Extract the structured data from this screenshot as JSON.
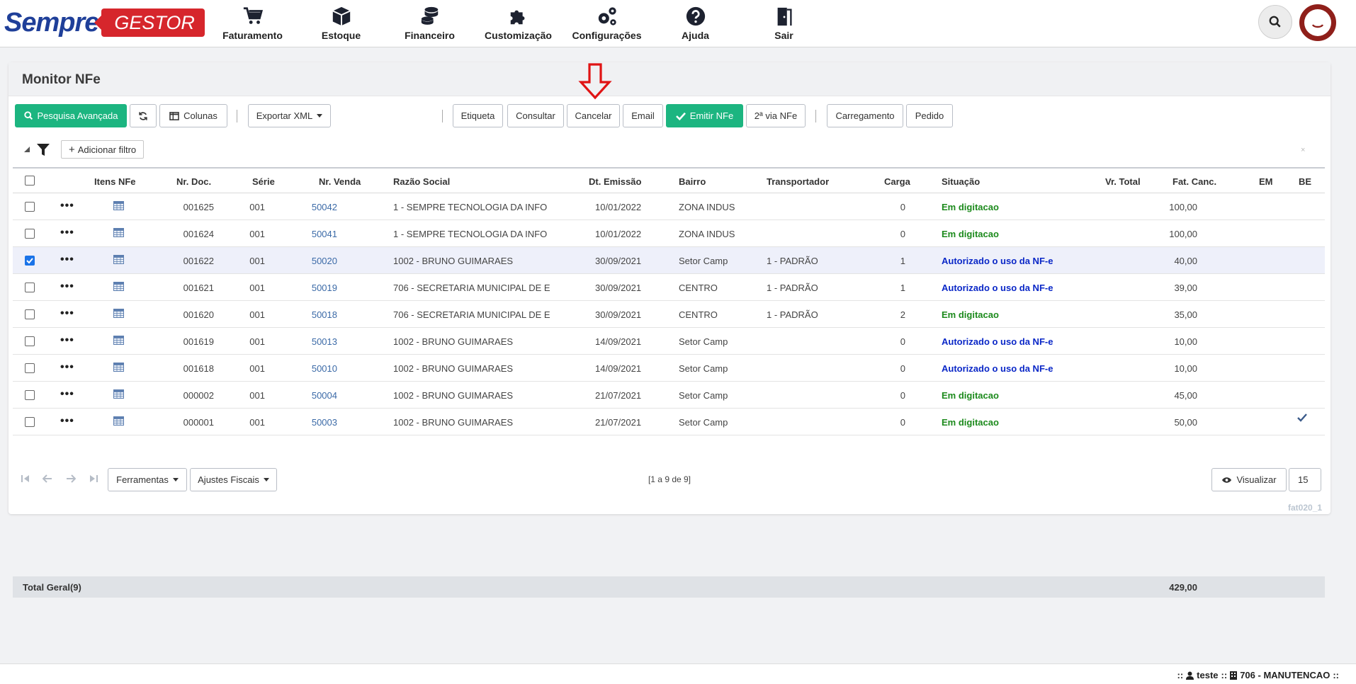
{
  "logo": {
    "part1": "Sempre",
    "part2": "GESTOR"
  },
  "nav": [
    {
      "label": "Faturamento",
      "icon": "cart-icon"
    },
    {
      "label": "Estoque",
      "icon": "box-icon"
    },
    {
      "label": "Financeiro",
      "icon": "coins-icon"
    },
    {
      "label": "Customização",
      "icon": "puzzle-icon"
    },
    {
      "label": "Configurações",
      "icon": "gears-icon"
    },
    {
      "label": "Ajuda",
      "icon": "help-icon"
    },
    {
      "label": "Sair",
      "icon": "door-exit-icon"
    }
  ],
  "page": {
    "title": "Monitor NFe"
  },
  "toolbar": {
    "advanced_search": "Pesquisa Avançada",
    "columns": "Colunas",
    "export_xml": "Exportar XML",
    "label": "Etiqueta",
    "consult": "Consultar",
    "cancel": "Cancelar",
    "email": "Email",
    "emit": "Emitir NFe",
    "second_copy": "2ª via NFe",
    "loading": "Carregamento",
    "order": "Pedido"
  },
  "filter": {
    "add": "Adicionar filtro",
    "close": "×"
  },
  "table": {
    "headers": [
      "Itens NFe",
      "Nr. Doc.",
      "Série",
      "Nr. Venda",
      "Razão Social",
      "Dt. Emissão",
      "Bairro",
      "Transportador",
      "Carga",
      "Situação",
      "Vr. Total",
      "Fat. Canc.",
      "EM",
      "BE"
    ],
    "rows": [
      {
        "doc": "001625",
        "serie": "001",
        "venda": "50042",
        "razao": "1 - SEMPRE TECNOLOGIA DA INFO",
        "data": "10/01/2022",
        "bairro": "ZONA INDUS",
        "transp": "",
        "carga": "0",
        "situacao": "Em digitacao",
        "status": "green",
        "total": "100,00",
        "checked": false,
        "be": false
      },
      {
        "doc": "001624",
        "serie": "001",
        "venda": "50041",
        "razao": "1 - SEMPRE TECNOLOGIA DA INFO",
        "data": "10/01/2022",
        "bairro": "ZONA INDUS",
        "transp": "",
        "carga": "0",
        "situacao": "Em digitacao",
        "status": "green",
        "total": "100,00",
        "checked": false,
        "be": false
      },
      {
        "doc": "001622",
        "serie": "001",
        "venda": "50020",
        "razao": "1002 - BRUNO GUIMARAES",
        "data": "30/09/2021",
        "bairro": "Setor Camp",
        "transp": "1 - PADRÃO",
        "carga": "1",
        "situacao": "Autorizado o uso da NF-e",
        "status": "blue",
        "total": "40,00",
        "checked": true,
        "be": false
      },
      {
        "doc": "001621",
        "serie": "001",
        "venda": "50019",
        "razao": "706 - SECRETARIA MUNICIPAL DE E",
        "data": "30/09/2021",
        "bairro": "CENTRO",
        "transp": "1 - PADRÃO",
        "carga": "1",
        "situacao": "Autorizado o uso da NF-e",
        "status": "blue",
        "total": "39,00",
        "checked": false,
        "be": false
      },
      {
        "doc": "001620",
        "serie": "001",
        "venda": "50018",
        "razao": "706 - SECRETARIA MUNICIPAL DE E",
        "data": "30/09/2021",
        "bairro": "CENTRO",
        "transp": "1 - PADRÃO",
        "carga": "2",
        "situacao": "Em digitacao",
        "status": "green",
        "total": "35,00",
        "checked": false,
        "be": false
      },
      {
        "doc": "001619",
        "serie": "001",
        "venda": "50013",
        "razao": "1002 - BRUNO GUIMARAES",
        "data": "14/09/2021",
        "bairro": "Setor Camp",
        "transp": "",
        "carga": "0",
        "situacao": "Autorizado o uso da NF-e",
        "status": "blue",
        "total": "10,00",
        "checked": false,
        "be": false
      },
      {
        "doc": "001618",
        "serie": "001",
        "venda": "50010",
        "razao": "1002 - BRUNO GUIMARAES",
        "data": "14/09/2021",
        "bairro": "Setor Camp",
        "transp": "",
        "carga": "0",
        "situacao": "Autorizado o uso da NF-e",
        "status": "blue",
        "total": "10,00",
        "checked": false,
        "be": false
      },
      {
        "doc": "000002",
        "serie": "001",
        "venda": "50004",
        "razao": "1002 - BRUNO GUIMARAES",
        "data": "21/07/2021",
        "bairro": "Setor Camp",
        "transp": "",
        "carga": "0",
        "situacao": "Em digitacao",
        "status": "green",
        "total": "45,00",
        "checked": false,
        "be": false
      },
      {
        "doc": "000001",
        "serie": "001",
        "venda": "50003",
        "razao": "1002 - BRUNO GUIMARAES",
        "data": "21/07/2021",
        "bairro": "Setor Camp",
        "transp": "",
        "carga": "0",
        "situacao": "Em digitacao",
        "status": "green",
        "total": "50,00",
        "checked": false,
        "be": true
      }
    ],
    "total_label": "Total Geral(9)",
    "total_value": "429,00"
  },
  "pager": {
    "tools": "Ferramentas",
    "fiscal": "Ajustes Fiscais",
    "range": "[1 a 9 de 9]",
    "view": "Visualizar",
    "page_size": "15"
  },
  "footer_code": "fat020_1",
  "status": {
    "user": "teste",
    "company": "706 - MANUTENCAO",
    "prefix": "::",
    "sep": "::",
    "suffix": "::"
  },
  "colors": {
    "accent": "#1cb580",
    "brand_blue": "#1f3f99",
    "brand_red": "#d6262c",
    "status_green": "#1c8a1c",
    "status_blue": "#0a27c7"
  }
}
